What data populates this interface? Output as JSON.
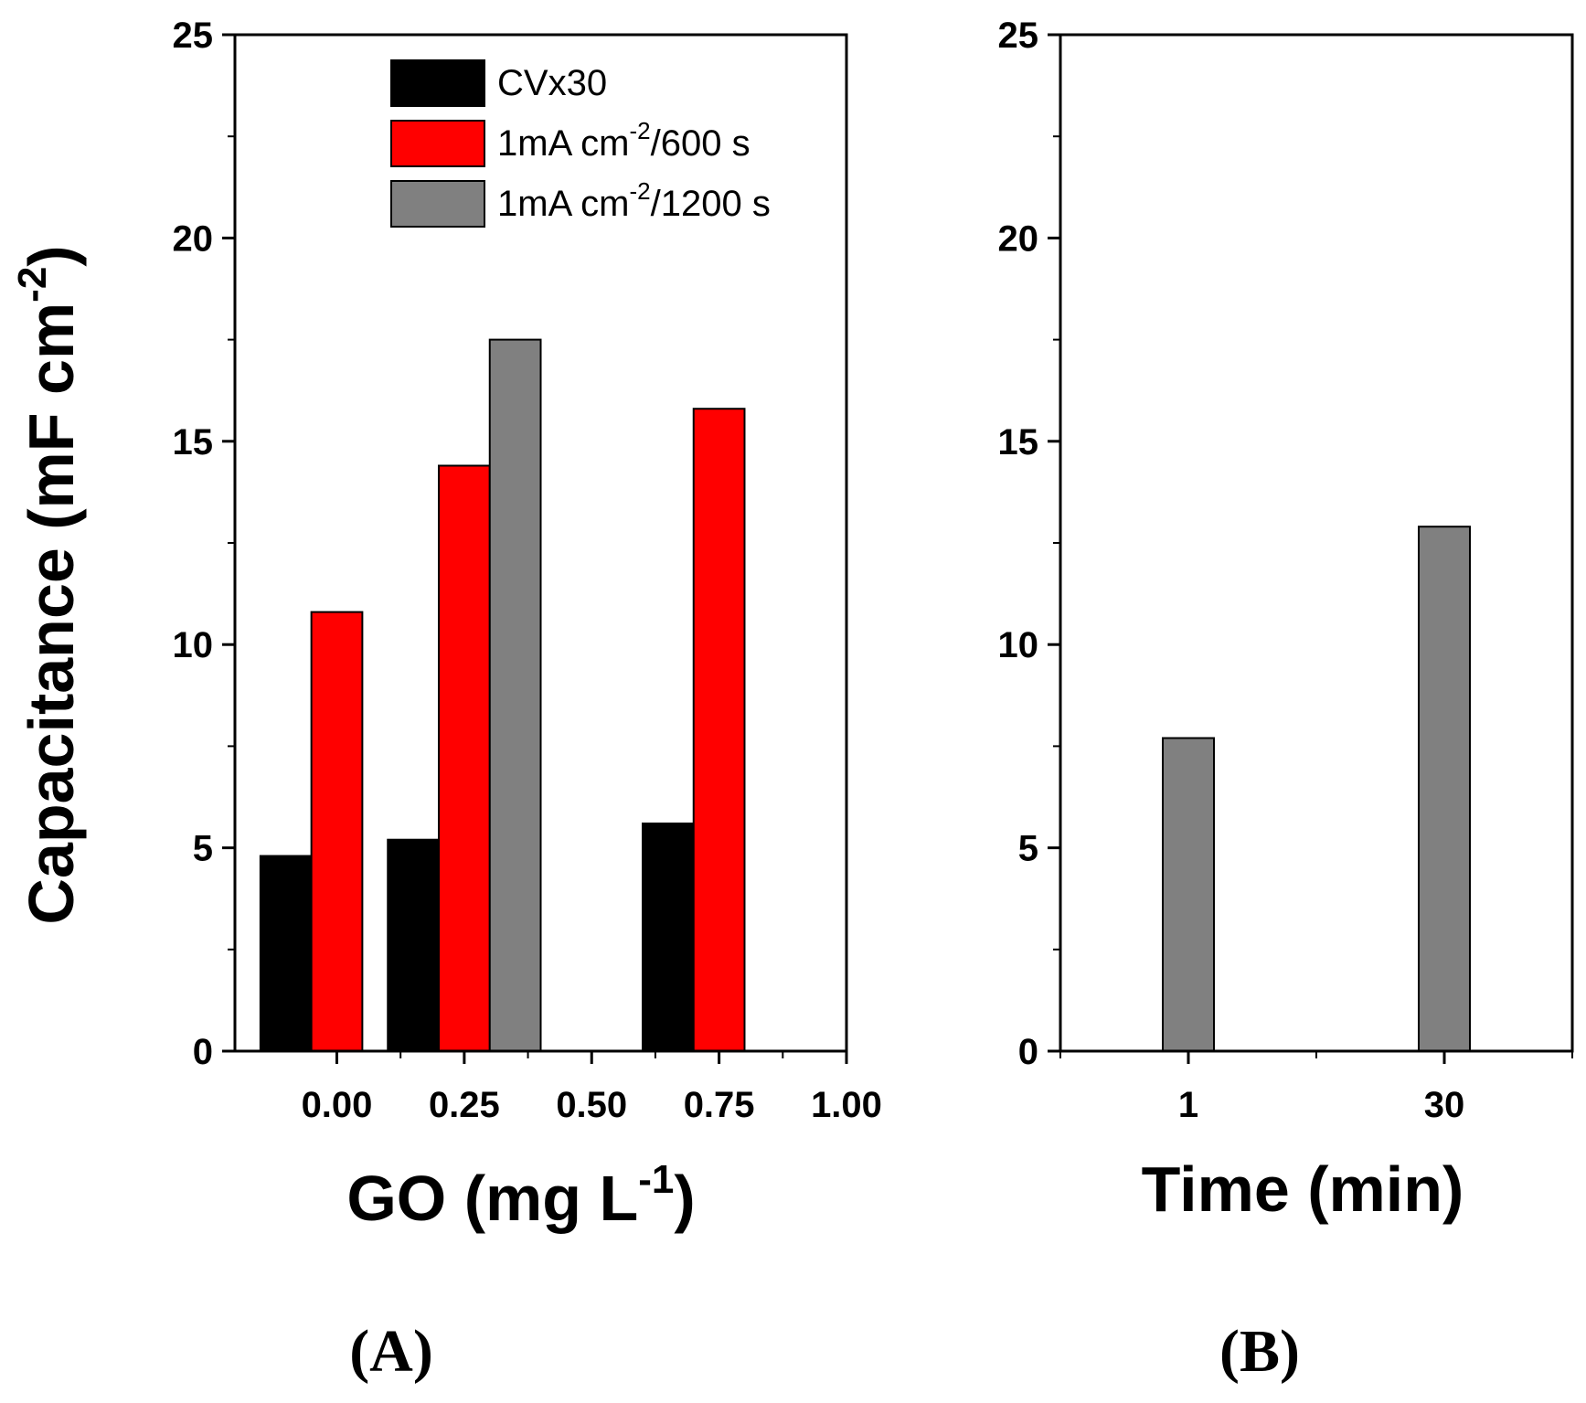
{
  "chart_data": [
    {
      "type": "bar",
      "panel_label": "(A)",
      "xlabel": "GO (mg L",
      "xlabel_sup": "-1",
      "xlabel_tail": ")",
      "ylabel": "Capacitance (mF cm",
      "ylabel_sup": "-2",
      "ylabel_tail": ")",
      "xlim": [
        -0.2,
        1.0
      ],
      "ylim": [
        0,
        25
      ],
      "xticks": [
        0.0,
        0.25,
        0.5,
        0.75,
        1.0
      ],
      "xtick_labels": [
        "0.00",
        "0.25",
        "0.50",
        "0.75",
        "1.00"
      ],
      "yticks": [
        0,
        5,
        10,
        15,
        20,
        25
      ],
      "ytick_labels": [
        "0",
        "5",
        "10",
        "15",
        "20",
        "25"
      ],
      "legend_position": "top-center",
      "series": [
        {
          "name": "CVx30",
          "color": "#000000",
          "x": [
            0.0,
            0.25,
            0.75
          ],
          "values": [
            4.8,
            5.2,
            5.6
          ]
        },
        {
          "name": "1mA cm-2/600 s",
          "legend_parts": [
            "1mA cm",
            "-2",
            "/600 s"
          ],
          "color": "#ff0000",
          "x": [
            0.0,
            0.25,
            0.75
          ],
          "values": [
            10.8,
            14.4,
            15.8
          ]
        },
        {
          "name": "1mA cm-2/1200 s",
          "legend_parts": [
            "1mA cm",
            "-2",
            "/1200 s"
          ],
          "color": "#808080",
          "x": [
            0.25
          ],
          "values": [
            17.5
          ]
        }
      ]
    },
    {
      "type": "bar",
      "panel_label": "(B)",
      "xlabel": "Time (min)",
      "xlim": [
        0,
        2
      ],
      "ylim": [
        0,
        25
      ],
      "categories": [
        "1",
        "30"
      ],
      "yticks": [
        0,
        5,
        10,
        15,
        20,
        25
      ],
      "ytick_labels": [
        "0",
        "5",
        "10",
        "15",
        "20",
        "25"
      ],
      "series": [
        {
          "name": "1mA cm-2/1200 s",
          "color": "#808080",
          "values": [
            7.7,
            12.9
          ]
        }
      ]
    }
  ]
}
